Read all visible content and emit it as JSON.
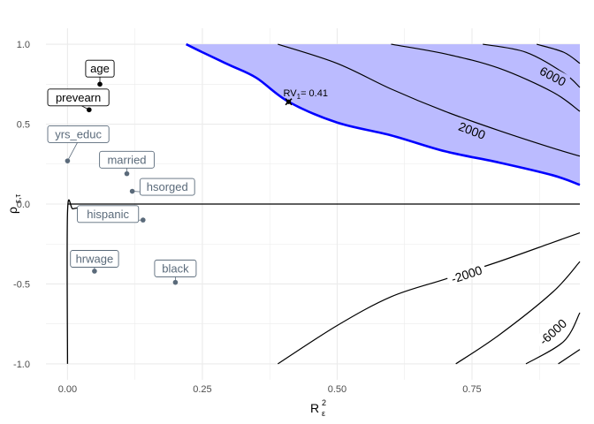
{
  "chart_data": {
    "type": "contour",
    "xlabel_main": "R",
    "xlabel_sup": "2",
    "xlabel_sub": "ε",
    "ylabel_main": "ρ",
    "ylabel_sub": "ε,τ",
    "xlim": [
      -0.04,
      0.95
    ],
    "ylim": [
      -1.1,
      1.1
    ],
    "x_ticks": [
      {
        "value": 0.0,
        "label": "0.00"
      },
      {
        "value": 0.25,
        "label": "0.25"
      },
      {
        "value": 0.5,
        "label": "0.50"
      },
      {
        "value": 0.75,
        "label": "0.75"
      }
    ],
    "y_ticks": [
      {
        "value": -1.0,
        "label": "-1.0"
      },
      {
        "value": -0.5,
        "label": "-0.5"
      },
      {
        "value": 0.0,
        "label": "0.0"
      },
      {
        "value": 0.5,
        "label": "0.5"
      },
      {
        "value": 1.0,
        "label": "1.0"
      }
    ],
    "grid": true,
    "colors": {
      "shade_fill": "#bbbbff",
      "boundary": "#0000ff",
      "contour": "#000000",
      "dark_label": "#000000",
      "light_label": "#5a6a7a",
      "grid": "#ebebeb"
    },
    "breakdown_boundary": [
      [
        0.22,
        1.0
      ],
      [
        0.25,
        0.95
      ],
      [
        0.3,
        0.87
      ],
      [
        0.35,
        0.79
      ],
      [
        0.41,
        0.64
      ],
      [
        0.5,
        0.51
      ],
      [
        0.6,
        0.43
      ],
      [
        0.7,
        0.33
      ],
      [
        0.8,
        0.26
      ],
      [
        0.9,
        0.18
      ],
      [
        0.95,
        0.12
      ]
    ],
    "contours_positive": [
      {
        "label": "2000",
        "points": [
          [
            0.39,
            1.0
          ],
          [
            0.5,
            0.88
          ],
          [
            0.6,
            0.72
          ],
          [
            0.7,
            0.58
          ],
          [
            0.8,
            0.46
          ],
          [
            0.9,
            0.35
          ],
          [
            0.95,
            0.3
          ]
        ],
        "label_at": [
          0.75,
          0.46
        ]
      },
      {
        "label": "6000",
        "points": [
          [
            0.6,
            1.0
          ],
          [
            0.7,
            0.94
          ],
          [
            0.8,
            0.85
          ],
          [
            0.9,
            0.7
          ],
          [
            0.95,
            0.58
          ]
        ],
        "label_at": [
          0.9,
          0.8
        ]
      },
      {
        "label": "",
        "points": [
          [
            0.77,
            1.0
          ],
          [
            0.85,
            0.95
          ],
          [
            0.92,
            0.82
          ],
          [
            0.95,
            0.73
          ]
        ]
      },
      {
        "label": "",
        "points": [
          [
            0.87,
            1.0
          ],
          [
            0.92,
            0.95
          ],
          [
            0.95,
            0.88
          ]
        ]
      }
    ],
    "contours_negative": [
      {
        "label": "-2000",
        "points": [
          [
            0.39,
            -1.0
          ],
          [
            0.5,
            -0.76
          ],
          [
            0.6,
            -0.58
          ],
          [
            0.7,
            -0.47
          ],
          [
            0.8,
            -0.36
          ],
          [
            0.9,
            -0.24
          ],
          [
            0.95,
            -0.18
          ]
        ],
        "label_at": [
          0.74,
          -0.44
        ]
      },
      {
        "label": "-6000",
        "points": [
          [
            0.72,
            -1.0
          ],
          [
            0.8,
            -0.82
          ],
          [
            0.9,
            -0.55
          ],
          [
            0.95,
            -0.36
          ]
        ],
        "label_at": [
          0.9,
          -0.8
        ]
      },
      {
        "label": "",
        "points": [
          [
            0.85,
            -1.0
          ],
          [
            0.92,
            -0.86
          ],
          [
            0.95,
            -0.68
          ]
        ]
      },
      {
        "label": "",
        "points": [
          [
            0.91,
            -1.0
          ],
          [
            0.95,
            -0.91
          ]
        ]
      }
    ],
    "zero_contour": {
      "horizontal": [
        [
          0.0,
          0.0
        ],
        [
          0.95,
          0.0
        ]
      ],
      "vertical": [
        [
          0.0,
          -1.0
        ],
        [
          0.0,
          -0.05
        ],
        [
          0.01,
          -0.03
        ],
        [
          0.03,
          -0.02
        ],
        [
          0.05,
          -0.02
        ]
      ]
    },
    "rv_point": {
      "x": 0.41,
      "y": 0.64,
      "label_main": "RV",
      "label_sub": "1",
      "label_rest": "= 0.41"
    },
    "covariates": [
      {
        "name": "age",
        "x": 0.06,
        "y": 0.75,
        "style": "dark",
        "label_at": [
          0.06,
          0.85
        ]
      },
      {
        "name": "prevearn",
        "x": 0.04,
        "y": 0.59,
        "style": "dark",
        "label_at": [
          0.02,
          0.67
        ]
      },
      {
        "name": "yrs_educ",
        "x": 0.0,
        "y": 0.27,
        "style": "light",
        "label_at": [
          0.02,
          0.44
        ]
      },
      {
        "name": "married",
        "x": 0.11,
        "y": 0.19,
        "style": "light",
        "label_at": [
          0.11,
          0.28
        ]
      },
      {
        "name": "hsorged",
        "x": 0.12,
        "y": 0.08,
        "style": "light",
        "label_at": [
          0.185,
          0.11
        ]
      },
      {
        "name": "hispanic",
        "x": 0.14,
        "y": -0.1,
        "style": "light",
        "label_at": [
          0.075,
          -0.06
        ]
      },
      {
        "name": "hrwage",
        "x": 0.05,
        "y": -0.42,
        "style": "light",
        "label_at": [
          0.05,
          -0.34
        ]
      },
      {
        "name": "black",
        "x": 0.2,
        "y": -0.49,
        "style": "light",
        "label_at": [
          0.2,
          -0.4
        ]
      }
    ]
  }
}
